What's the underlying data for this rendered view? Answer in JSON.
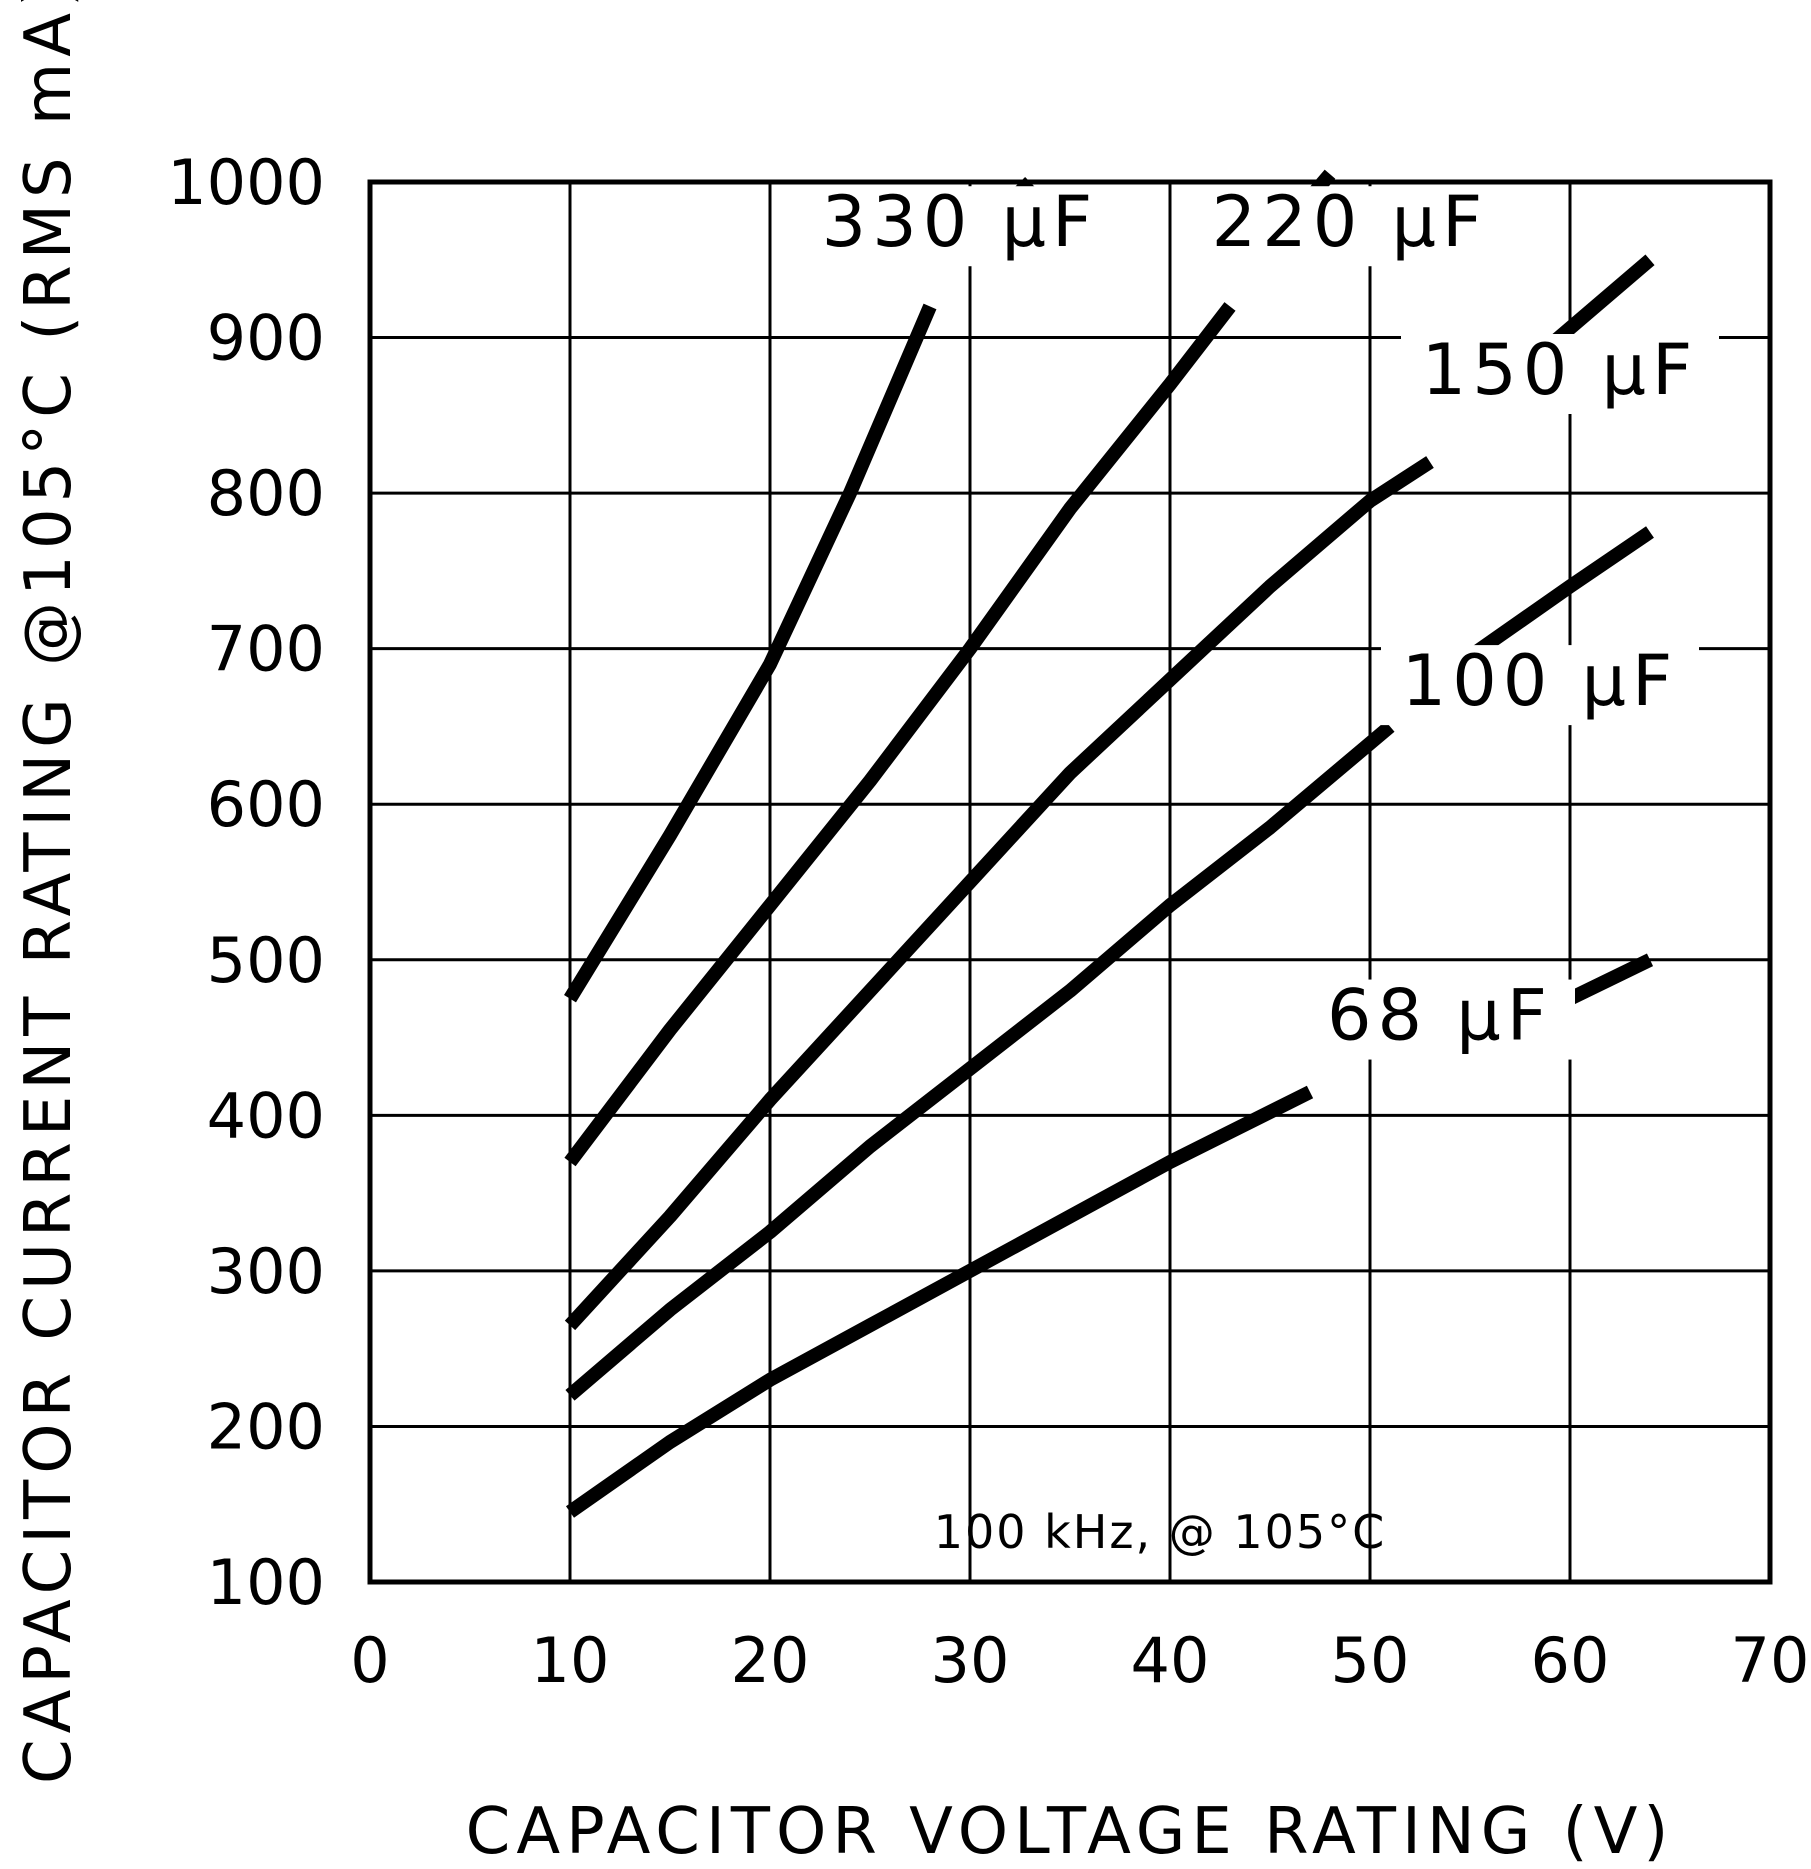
{
  "chart_data": {
    "type": "line",
    "xlabel": "CAPACITOR VOLTAGE RATING (V)",
    "ylabel": "CAPACITOR CURRENT RATING @105°C (RMS mA)",
    "xlim": [
      0,
      70
    ],
    "ylim": [
      100,
      1000
    ],
    "x_ticks": [
      0,
      10,
      20,
      30,
      40,
      50,
      60,
      70
    ],
    "y_ticks": [
      100,
      200,
      300,
      400,
      500,
      600,
      700,
      800,
      900,
      1000
    ],
    "x_tick_labels": [
      "0",
      "10",
      "20",
      "30",
      "40",
      "50",
      "60",
      "70"
    ],
    "y_tick_labels": [
      "100",
      "200",
      "300",
      "400",
      "500",
      "600",
      "700",
      "800",
      "900",
      "1000"
    ],
    "grid": true,
    "annotation": "100 kHz, @ 105°C",
    "series": [
      {
        "name": "330 µF",
        "x": [
          10,
          15,
          20,
          24,
          28
        ],
        "y": [
          475,
          580,
          690,
          800,
          920
        ],
        "x2": [
          31,
          33
        ],
        "y2": [
          975,
          1000
        ]
      },
      {
        "name": "220 µF",
        "x": [
          10,
          15,
          20,
          25,
          30,
          35,
          40,
          43
        ],
        "y": [
          370,
          455,
          535,
          615,
          700,
          790,
          870,
          920
        ],
        "x2": [
          47,
          48
        ],
        "y2": [
          990,
          1005
        ]
      },
      {
        "name": "150 µF",
        "x": [
          10,
          15,
          20,
          25,
          30,
          35,
          40,
          45,
          50,
          53
        ],
        "y": [
          265,
          335,
          410,
          480,
          550,
          620,
          680,
          740,
          795,
          820
        ],
        "x2": [
          59,
          64
        ],
        "y2": [
          895,
          950
        ]
      },
      {
        "name": "100 µF",
        "x": [
          10,
          15,
          20,
          25,
          30,
          35,
          40,
          45,
          51
        ],
        "y": [
          220,
          275,
          325,
          380,
          430,
          480,
          535,
          585,
          650
        ],
        "x2": [
          55,
          60,
          64
        ],
        "y2": [
          695,
          740,
          775
        ]
      },
      {
        "name": "68 µF",
        "x": [
          10,
          15,
          20,
          25,
          30,
          35,
          40,
          47
        ],
        "y": [
          145,
          190,
          230,
          265,
          300,
          335,
          370,
          415
        ],
        "x2": [
          60,
          64
        ],
        "y2": [
          475,
          500
        ]
      }
    ]
  }
}
